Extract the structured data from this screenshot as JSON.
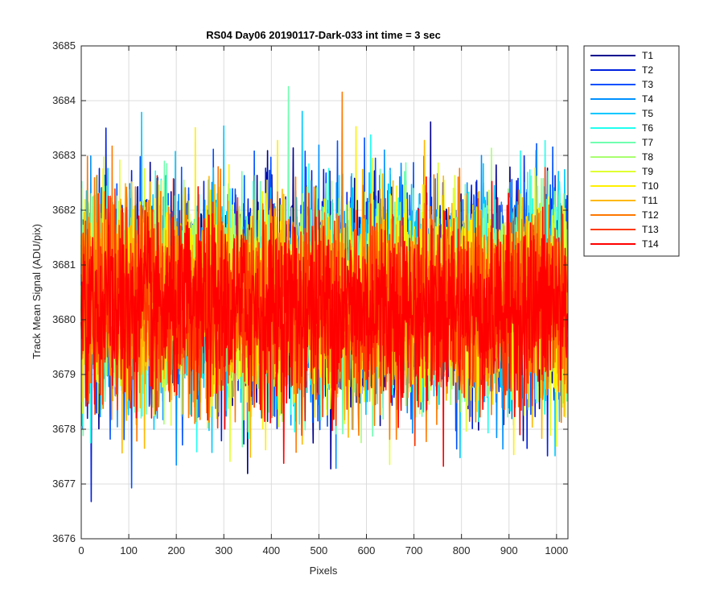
{
  "chart_data": {
    "type": "line",
    "title": "RS04 Day06 20190117-Dark-033 int time = 3 sec",
    "xlabel": "Pixels",
    "ylabel": "Track Mean Signal (ADU/pix)",
    "xlim": [
      0,
      1024
    ],
    "ylim": [
      3676,
      3685
    ],
    "xticks": [
      0,
      100,
      200,
      300,
      400,
      500,
      600,
      700,
      800,
      900,
      1000
    ],
    "yticks": [
      3676,
      3677,
      3678,
      3679,
      3680,
      3681,
      3682,
      3683,
      3684,
      3685
    ],
    "grid": true,
    "legend_position": "outside-top-right",
    "n_points": 1024,
    "series": [
      {
        "name": "T1",
        "color": "#00008F",
        "mean": 3680.5,
        "noise_sd": 0.95
      },
      {
        "name": "T2",
        "color": "#0020DF",
        "mean": 3680.5,
        "noise_sd": 0.95
      },
      {
        "name": "T3",
        "color": "#0050FF",
        "mean": 3680.5,
        "noise_sd": 0.95
      },
      {
        "name": "T4",
        "color": "#0090FF",
        "mean": 3680.5,
        "noise_sd": 0.95
      },
      {
        "name": "T5",
        "color": "#00C8FF",
        "mean": 3680.4,
        "noise_sd": 0.95
      },
      {
        "name": "T6",
        "color": "#20FFEF",
        "mean": 3680.4,
        "noise_sd": 0.9
      },
      {
        "name": "T7",
        "color": "#70FFAF",
        "mean": 3680.4,
        "noise_sd": 0.9
      },
      {
        "name": "T8",
        "color": "#A8FF70",
        "mean": 3680.4,
        "noise_sd": 0.9
      },
      {
        "name": "T9",
        "color": "#E0FF30",
        "mean": 3680.4,
        "noise_sd": 0.9
      },
      {
        "name": "T10",
        "color": "#FFF000",
        "mean": 3680.3,
        "noise_sd": 0.9
      },
      {
        "name": "T11",
        "color": "#FFB800",
        "mean": 3680.3,
        "noise_sd": 0.9
      },
      {
        "name": "T12",
        "color": "#FF7800",
        "mean": 3680.3,
        "noise_sd": 0.9
      },
      {
        "name": "T13",
        "color": "#FF3800",
        "mean": 3680.2,
        "noise_sd": 0.85
      },
      {
        "name": "T14",
        "color": "#FF0000",
        "mean": 3680.2,
        "noise_sd": 0.85
      }
    ]
  }
}
